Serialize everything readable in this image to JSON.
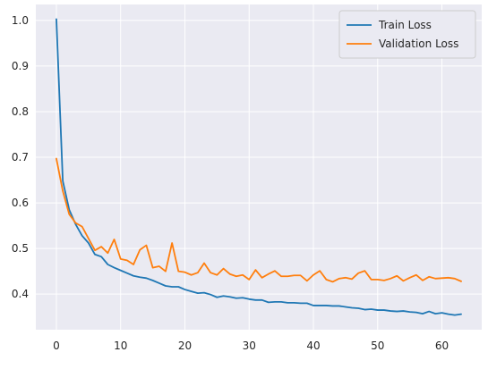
{
  "chart_data": {
    "type": "line",
    "title": "",
    "xlabel": "",
    "ylabel": "",
    "xlim": [
      -3.2,
      66.2
    ],
    "ylim": [
      0.322,
      1.035
    ],
    "x_ticks": [
      0,
      10,
      20,
      30,
      40,
      50,
      60
    ],
    "y_ticks": [
      0.4,
      0.5,
      0.6,
      0.7,
      0.8,
      0.9,
      1.0
    ],
    "x_tick_labels": [
      "0",
      "10",
      "20",
      "30",
      "40",
      "50",
      "60"
    ],
    "y_tick_labels": [
      "0.4",
      "0.5",
      "0.6",
      "0.7",
      "0.8",
      "0.9",
      "1.0"
    ],
    "grid": true,
    "legend_position": "top-right",
    "x": [
      0,
      1,
      2,
      3,
      4,
      5,
      6,
      7,
      8,
      9,
      10,
      11,
      12,
      13,
      14,
      15,
      16,
      17,
      18,
      19,
      20,
      21,
      22,
      23,
      24,
      25,
      26,
      27,
      28,
      29,
      30,
      31,
      32,
      33,
      34,
      35,
      36,
      37,
      38,
      39,
      40,
      41,
      42,
      43,
      44,
      45,
      46,
      47,
      48,
      49,
      50,
      51,
      52,
      53,
      54,
      55,
      56,
      57,
      58,
      59,
      60,
      61,
      62,
      63
    ],
    "series": [
      {
        "name": "Train Loss",
        "color": "#1f77b4",
        "values": [
          1.003,
          0.648,
          0.585,
          0.553,
          0.528,
          0.512,
          0.487,
          0.482,
          0.465,
          0.458,
          0.452,
          0.446,
          0.44,
          0.437,
          0.435,
          0.43,
          0.424,
          0.418,
          0.416,
          0.416,
          0.41,
          0.406,
          0.402,
          0.403,
          0.399,
          0.393,
          0.396,
          0.394,
          0.391,
          0.392,
          0.389,
          0.387,
          0.387,
          0.382,
          0.383,
          0.383,
          0.381,
          0.381,
          0.38,
          0.38,
          0.375,
          0.375,
          0.375,
          0.374,
          0.374,
          0.372,
          0.37,
          0.369,
          0.366,
          0.367,
          0.365,
          0.365,
          0.363,
          0.362,
          0.363,
          0.361,
          0.36,
          0.357,
          0.362,
          0.357,
          0.359,
          0.356,
          0.354,
          0.356
        ]
      },
      {
        "name": "Validation Loss",
        "color": "#ff7f0e",
        "values": [
          0.697,
          0.626,
          0.575,
          0.556,
          0.548,
          0.522,
          0.496,
          0.504,
          0.49,
          0.52,
          0.477,
          0.474,
          0.465,
          0.497,
          0.507,
          0.458,
          0.461,
          0.45,
          0.512,
          0.45,
          0.448,
          0.442,
          0.447,
          0.468,
          0.447,
          0.442,
          0.456,
          0.444,
          0.439,
          0.442,
          0.432,
          0.453,
          0.436,
          0.444,
          0.451,
          0.439,
          0.439,
          0.441,
          0.441,
          0.429,
          0.442,
          0.451,
          0.432,
          0.427,
          0.434,
          0.436,
          0.433,
          0.446,
          0.451,
          0.432,
          0.432,
          0.43,
          0.434,
          0.44,
          0.429,
          0.436,
          0.442,
          0.43,
          0.438,
          0.434,
          0.435,
          0.436,
          0.434,
          0.428
        ]
      }
    ]
  }
}
